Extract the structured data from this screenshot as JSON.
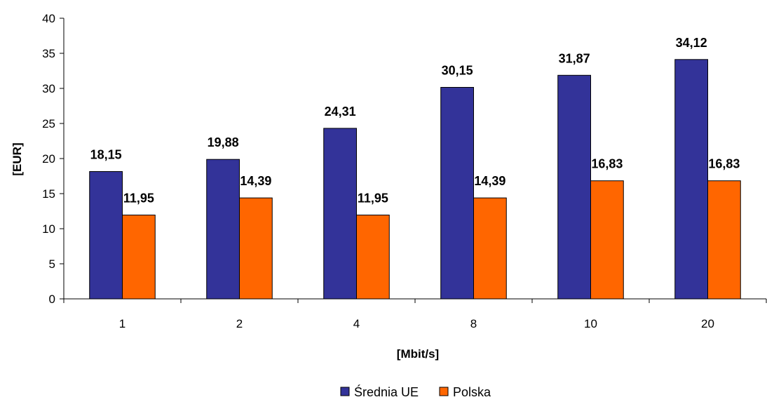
{
  "chart_data": {
    "type": "bar",
    "categories": [
      "1",
      "2",
      "4",
      "8",
      "10",
      "20"
    ],
    "series": [
      {
        "name": "Średnia UE",
        "values": [
          18.15,
          19.88,
          24.31,
          30.15,
          31.87,
          34.12
        ],
        "labels": [
          "18,15",
          "19,88",
          "24,31",
          "30,15",
          "31,87",
          "34,12"
        ],
        "color": "#333399"
      },
      {
        "name": "Polska",
        "values": [
          11.95,
          14.39,
          11.95,
          14.39,
          16.83,
          16.83
        ],
        "labels": [
          "11,95",
          "14,39",
          "11,95",
          "14,39",
          "16,83",
          "16,83"
        ],
        "color": "#FF6600"
      }
    ],
    "xlabel": "[Mbit/s]",
    "ylabel": "[EUR]",
    "ylim": [
      0,
      40
    ],
    "yticks": [
      0,
      5,
      10,
      15,
      20,
      25,
      30,
      35,
      40
    ],
    "grid": false,
    "legend_position": "bottom"
  }
}
